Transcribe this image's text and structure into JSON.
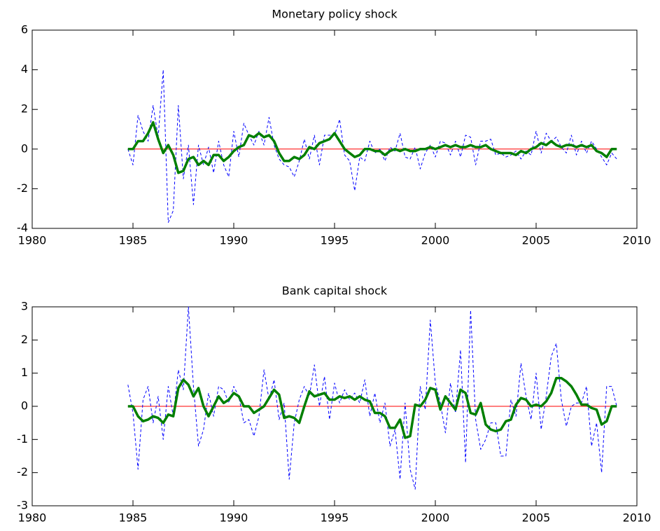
{
  "chart_data": [
    {
      "type": "line",
      "title": "Monetary policy shock",
      "x": [
        1984.75,
        1985,
        1985.25,
        1985.5,
        1985.75,
        1986,
        1986.25,
        1986.5,
        1986.75,
        1987,
        1987.25,
        1987.5,
        1987.75,
        1988,
        1988.25,
        1988.5,
        1988.75,
        1989,
        1989.25,
        1989.5,
        1989.75,
        1990,
        1990.25,
        1990.5,
        1990.75,
        1991,
        1991.25,
        1991.5,
        1991.75,
        1992,
        1992.25,
        1992.5,
        1992.75,
        1993,
        1993.25,
        1993.5,
        1993.75,
        1994,
        1994.25,
        1994.5,
        1994.75,
        1995,
        1995.25,
        1995.5,
        1995.75,
        1996,
        1996.25,
        1996.5,
        1996.75,
        1997,
        1997.25,
        1997.5,
        1997.75,
        1998,
        1998.25,
        1998.5,
        1998.75,
        1999,
        1999.25,
        1999.5,
        1999.75,
        2000,
        2000.25,
        2000.5,
        2000.75,
        2001,
        2001.25,
        2001.5,
        2001.75,
        2002,
        2002.25,
        2002.5,
        2002.75,
        2003,
        2003.25,
        2003.5,
        2003.75,
        2004,
        2004.25,
        2004.5,
        2004.75,
        2005,
        2005.25,
        2005.5,
        2005.75,
        2006,
        2006.25,
        2006.5,
        2006.75,
        2007,
        2007.25,
        2007.5,
        2007.75,
        2008,
        2008.25,
        2008.5,
        2008.75,
        2009
      ],
      "series": [
        {
          "color": "#0000ff",
          "dashed": true,
          "width": 1,
          "values": [
            0,
            -0.8,
            1.7,
            0.9,
            0.4,
            2.2,
            0.6,
            4.0,
            -3.7,
            -3.1,
            2.2,
            -1.5,
            0.2,
            -2.8,
            0.2,
            -0.8,
            0.1,
            -1.2,
            0.4,
            -0.8,
            -1.4,
            0.9,
            -0.4,
            1.3,
            0.7,
            0.2,
            0.9,
            0.2,
            1.6,
            0.2,
            -0.5,
            -0.8,
            -0.9,
            -1.4,
            -0.6,
            0.5,
            -0.5,
            0.7,
            -0.8,
            0.7,
            0.7,
            0.7,
            1.5,
            -0.3,
            -0.6,
            -2.1,
            -0.4,
            -0.6,
            0.4,
            -0.2,
            0,
            -0.6,
            0.1,
            -0.1,
            0.8,
            -0.4,
            -0.5,
            0.1,
            -1.0,
            -0.2,
            0.2,
            -0.4,
            0.4,
            0.3,
            -0.3,
            0.4,
            -0.4,
            0.7,
            0.6,
            -0.8,
            0.4,
            0.4,
            0.5,
            -0.3,
            -0.2,
            -0.4,
            -0.3,
            -0.1,
            -0.5,
            -0.1,
            -0.3,
            0.9,
            -0.2,
            0.8,
            0.4,
            0.6,
            0.1,
            -0.2,
            0.7,
            -0.3,
            0.4,
            -0.2,
            0.4,
            0,
            -0.4,
            -0.8,
            -0.2,
            -0.5
          ]
        },
        {
          "color": "#007f00",
          "dashed": false,
          "width": 3.5,
          "values": [
            0,
            0,
            0.4,
            0.4,
            0.8,
            1.35,
            0.5,
            -0.2,
            0.2,
            -0.3,
            -1.2,
            -1.1,
            -0.5,
            -0.4,
            -0.8,
            -0.6,
            -0.8,
            -0.3,
            -0.3,
            -0.6,
            -0.4,
            -0.1,
            0.1,
            0.2,
            0.7,
            0.6,
            0.8,
            0.6,
            0.7,
            0.4,
            -0.2,
            -0.6,
            -0.6,
            -0.4,
            -0.5,
            -0.3,
            0.1,
            0,
            0.3,
            0.4,
            0.5,
            0.8,
            0.4,
            0,
            -0.2,
            -0.4,
            -0.3,
            0,
            0,
            -0.1,
            -0.1,
            -0.3,
            -0.1,
            0,
            -0.1,
            0,
            -0.1,
            -0.1,
            0,
            0,
            0.1,
            0,
            0.1,
            0.2,
            0.1,
            0.2,
            0.1,
            0.1,
            0.2,
            0.1,
            0.1,
            0.2,
            0,
            -0.1,
            -0.2,
            -0.2,
            -0.2,
            -0.3,
            -0.1,
            -0.2,
            0,
            0.1,
            0.3,
            0.2,
            0.4,
            0.2,
            0.1,
            0.2,
            0.2,
            0.1,
            0.2,
            0.1,
            0.2,
            -0.1,
            -0.2,
            -0.4,
            0,
            0
          ]
        }
      ],
      "hline": {
        "value": 0,
        "color": "#ff0000"
      },
      "xlim": [
        1980,
        2010
      ],
      "xticks": [
        1980,
        1985,
        1990,
        1995,
        2000,
        2005,
        2010
      ],
      "ylim": [
        -4,
        6
      ],
      "yticks": [
        -4,
        -2,
        0,
        2,
        4,
        6
      ]
    },
    {
      "type": "line",
      "title": "Bank capital shock",
      "x": [
        1984.75,
        1985,
        1985.25,
        1985.5,
        1985.75,
        1986,
        1986.25,
        1986.5,
        1986.75,
        1987,
        1987.25,
        1987.5,
        1987.75,
        1988,
        1988.25,
        1988.5,
        1988.75,
        1989,
        1989.25,
        1989.5,
        1989.75,
        1990,
        1990.25,
        1990.5,
        1990.75,
        1991,
        1991.25,
        1991.5,
        1991.75,
        1992,
        1992.25,
        1992.5,
        1992.75,
        1993,
        1993.25,
        1993.5,
        1993.75,
        1994,
        1994.25,
        1994.5,
        1994.75,
        1995,
        1995.25,
        1995.5,
        1995.75,
        1996,
        1996.25,
        1996.5,
        1996.75,
        1997,
        1997.25,
        1997.5,
        1997.75,
        1998,
        1998.25,
        1998.5,
        1998.75,
        1999,
        1999.25,
        1999.5,
        1999.75,
        2000,
        2000.25,
        2000.5,
        2000.75,
        2001,
        2001.25,
        2001.5,
        2001.75,
        2002,
        2002.25,
        2002.5,
        2002.75,
        2003,
        2003.25,
        2003.5,
        2003.75,
        2004,
        2004.25,
        2004.5,
        2004.75,
        2005,
        2005.25,
        2005.5,
        2005.75,
        2006,
        2006.25,
        2006.5,
        2006.75,
        2007,
        2007.25,
        2007.5,
        2007.75,
        2008,
        2008.25,
        2008.5,
        2008.75,
        2009
      ],
      "series": [
        {
          "color": "#0000ff",
          "dashed": true,
          "width": 1,
          "values": [
            0.65,
            -0.2,
            -1.9,
            0.2,
            0.6,
            -0.5,
            0.3,
            -1.0,
            0.6,
            -0.3,
            1.1,
            0.5,
            3.0,
            0.6,
            -1.2,
            -0.7,
            0.4,
            -0.3,
            0.6,
            0.5,
            0.1,
            0.6,
            0.3,
            -0.5,
            -0.4,
            -0.9,
            -0.3,
            1.1,
            0.2,
            0.8,
            -0.4,
            0.1,
            -2.2,
            -0.5,
            0.2,
            0.6,
            0.3,
            1.25,
            0,
            0.9,
            -0.4,
            0.7,
            0.1,
            0.5,
            0.2,
            0.4,
            0.1,
            0.8,
            -0.3,
            0.4,
            -0.5,
            0.1,
            -1.2,
            -0.7,
            -2.2,
            0.1,
            -1.9,
            -2.5,
            0.6,
            -0.1,
            2.6,
            0.7,
            0.1,
            -0.8,
            0.7,
            -0.2,
            1.7,
            -1.7,
            2.9,
            -0.4,
            -1.3,
            -1.0,
            -0.5,
            -0.5,
            -1.5,
            -1.5,
            0.2,
            -0.3,
            1.3,
            0.3,
            -0.4,
            1.0,
            -0.7,
            0.3,
            1.5,
            1.9,
            0.2,
            -0.6,
            0,
            0.1,
            0.1,
            0.6,
            -1.2,
            -0.5,
            -2.0,
            0.6,
            0.6,
            0
          ]
        },
        {
          "color": "#007f00",
          "dashed": false,
          "width": 3.5,
          "values": [
            0,
            0,
            -0.3,
            -0.45,
            -0.4,
            -0.3,
            -0.35,
            -0.5,
            -0.25,
            -0.3,
            0.55,
            0.8,
            0.65,
            0.3,
            0.55,
            0,
            -0.3,
            0,
            0.3,
            0.1,
            0.2,
            0.4,
            0.3,
            0,
            0,
            -0.2,
            -0.1,
            0,
            0.25,
            0.5,
            0.35,
            -0.35,
            -0.3,
            -0.35,
            -0.5,
            0,
            0.45,
            0.3,
            0.35,
            0.4,
            0.2,
            0.2,
            0.3,
            0.25,
            0.3,
            0.2,
            0.3,
            0.2,
            0.15,
            -0.2,
            -0.2,
            -0.3,
            -0.65,
            -0.65,
            -0.4,
            -0.95,
            -0.9,
            0.05,
            0,
            0.2,
            0.55,
            0.5,
            -0.1,
            0.3,
            0.1,
            -0.1,
            0.5,
            0.4,
            -0.2,
            -0.25,
            0.1,
            -0.55,
            -0.7,
            -0.75,
            -0.7,
            -0.45,
            -0.4,
            0.05,
            0.25,
            0.2,
            0,
            0.05,
            0,
            0.15,
            0.4,
            0.85,
            0.85,
            0.75,
            0.6,
            0.35,
            0.05,
            0.05,
            -0.05,
            -0.1,
            -0.55,
            -0.45,
            0,
            0
          ]
        }
      ],
      "hline": {
        "value": 0,
        "color": "#ff0000"
      },
      "xlim": [
        1980,
        2010
      ],
      "xticks": [
        1980,
        1985,
        1990,
        1995,
        2000,
        2005,
        2010
      ],
      "ylim": [
        -3,
        3
      ],
      "yticks": [
        -3,
        -2,
        -1,
        0,
        1,
        2,
        3
      ]
    }
  ]
}
